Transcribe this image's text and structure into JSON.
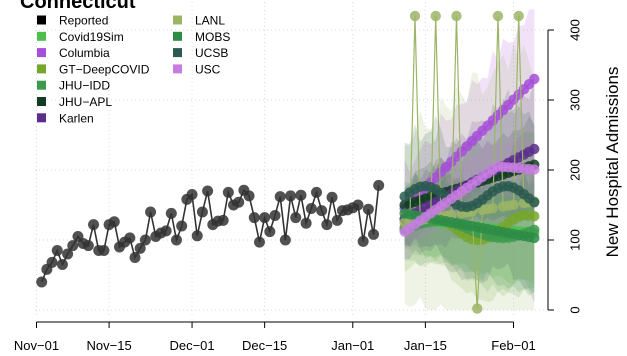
{
  "chart_data": {
    "type": "line",
    "title": "Connecticut",
    "xlabel": "",
    "ylabel": "New Hospital Admissions",
    "x_ticks": [
      "Nov−01",
      "Nov−15",
      "Dec−01",
      "Dec−15",
      "Jan−01",
      "Jan−15",
      "Feb−01"
    ],
    "y_ticks": [
      0,
      100,
      200,
      300,
      400
    ],
    "ylim": [
      0,
      430
    ],
    "xlim_days": [
      0,
      96
    ],
    "grid": true,
    "legend_position": "top-left",
    "forecast_start_day": 71,
    "reported": {
      "name": "Reported",
      "color": "#000000",
      "x_day": [
        1,
        2,
        3,
        4,
        5,
        6,
        7,
        8,
        9,
        10,
        11,
        12,
        13,
        14,
        15,
        16,
        17,
        18,
        19,
        20,
        21,
        22,
        23,
        24,
        25,
        26,
        27,
        28,
        29,
        30,
        31,
        32,
        33,
        34,
        35,
        36,
        37,
        38,
        39,
        40,
        41,
        42,
        43,
        44,
        45,
        46,
        47,
        48,
        49,
        50,
        51,
        52,
        53,
        54,
        55,
        56,
        57,
        58,
        59,
        60,
        61,
        62,
        63,
        64,
        65,
        66
      ],
      "values": [
        40,
        58,
        68,
        85,
        65,
        80,
        92,
        105,
        95,
        92,
        122,
        85,
        85,
        122,
        126,
        90,
        97,
        103,
        75,
        88,
        100,
        140,
        105,
        110,
        113,
        138,
        100,
        120,
        158,
        165,
        106,
        140,
        170,
        122,
        127,
        128,
        168,
        150,
        154,
        171,
        163,
        132,
        97,
        132,
        112,
        135,
        162,
        100,
        163,
        132,
        164,
        124,
        145,
        168,
        142,
        122,
        161,
        128,
        142,
        143,
        146,
        150,
        98,
        144,
        108,
        178
      ]
    },
    "series": [
      {
        "name": "Covid19Sim",
        "color": "#4dbf4d"
      },
      {
        "name": "Columbia",
        "color": "#a64dd9"
      },
      {
        "name": "GT−DeepCOVID",
        "color": "#77a62e"
      },
      {
        "name": "JHU−IDD",
        "color": "#3c9a4c"
      },
      {
        "name": "JHU−APL",
        "color": "#123d24"
      },
      {
        "name": "Karlen",
        "color": "#5a2e8c"
      },
      {
        "name": "LANL",
        "color": "#9bb565"
      },
      {
        "name": "MOBS",
        "color": "#2e8c47"
      },
      {
        "name": "UCSB",
        "color": "#2a5a50"
      },
      {
        "name": "USC",
        "color": "#c77de0"
      }
    ]
  }
}
